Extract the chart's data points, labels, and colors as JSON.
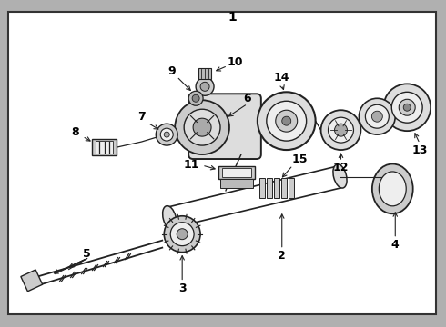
{
  "bg_color": "#ffffff",
  "border_color": "#333333",
  "line_color": "#222222",
  "fig_bg": "#b0b0b0",
  "label_fontsize": 9,
  "title_fontsize": 10
}
